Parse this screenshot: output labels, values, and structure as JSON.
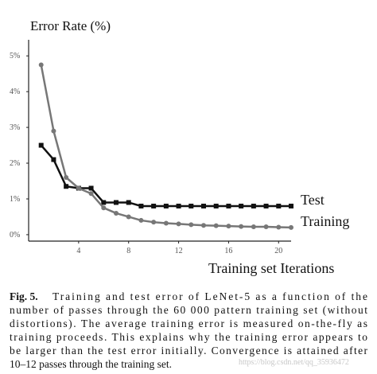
{
  "chart_data": {
    "type": "line",
    "y_title": "Error Rate (%)",
    "x_title": "Training set Iterations",
    "x": [
      1,
      2,
      3,
      4,
      5,
      6,
      7,
      8,
      9,
      10,
      11,
      12,
      13,
      14,
      15,
      16,
      17,
      18,
      19,
      20,
      21
    ],
    "series": [
      {
        "name": "Test",
        "color": "#111111",
        "marker": "square",
        "values": [
          2.5,
          2.1,
          1.35,
          1.3,
          1.3,
          0.9,
          0.9,
          0.9,
          0.8,
          0.8,
          0.8,
          0.8,
          0.8,
          0.8,
          0.8,
          0.8,
          0.8,
          0.8,
          0.8,
          0.8,
          0.8
        ]
      },
      {
        "name": "Training",
        "color": "#777777",
        "marker": "circle",
        "values": [
          4.75,
          2.9,
          1.6,
          1.3,
          1.15,
          0.75,
          0.6,
          0.5,
          0.4,
          0.35,
          0.32,
          0.3,
          0.28,
          0.26,
          0.25,
          0.24,
          0.23,
          0.22,
          0.22,
          0.21,
          0.2
        ]
      }
    ],
    "xlim": [
      0,
      21
    ],
    "xticks": [
      4,
      8,
      12,
      16,
      20
    ],
    "ylim": [
      -0.18,
      5.45
    ],
    "yticks": [
      {
        "value": 0,
        "label": "0%"
      },
      {
        "value": 1,
        "label": "1%"
      },
      {
        "value": 2,
        "label": "2%"
      },
      {
        "value": 3,
        "label": "3%"
      },
      {
        "value": 4,
        "label": "4%"
      },
      {
        "value": 5,
        "label": "5%"
      }
    ]
  },
  "caption": {
    "label": "Fig. 5.",
    "lines": [
      "Training and test error of LeNet-5 as a function of the",
      "number of passes through the 60 000 pattern training set (without",
      "distortions). The average training error is measured on-the-fly as",
      "training proceeds. This explains why the training error appears to",
      "be larger than the test error initially. Convergence is attained after",
      "10–12 passes through the training set."
    ]
  },
  "watermark": "https://blog.csdn.net/qq_35936472"
}
